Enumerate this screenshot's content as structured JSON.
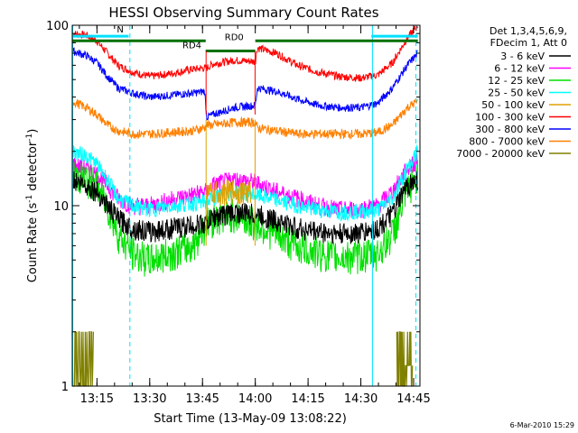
{
  "chart_data": {
    "type": "line",
    "title": "HESSI Observing Summary Count Rates",
    "xlabel": "Start Time (13-May-09 13:08:22)",
    "ylabel": "Count Rate (s⁻¹ detector⁻¹)",
    "ylabel_parts": {
      "pre": "Count Rate (s",
      "sup": "-1",
      "mid": " detector",
      "post": ")"
    },
    "x_range_minutes": [
      13.133,
      14.78
    ],
    "x_ticks": [
      {
        "label": "13:15",
        "t": 13.25
      },
      {
        "label": "13:30",
        "t": 13.5
      },
      {
        "label": "13:45",
        "t": 13.75
      },
      {
        "label": "14:00",
        "t": 14.0
      },
      {
        "label": "14:15",
        "t": 14.25
      },
      {
        "label": "14:30",
        "t": 14.5
      },
      {
        "label": "14:45",
        "t": 14.75
      }
    ],
    "y_scale": "log",
    "ylim": [
      1,
      100
    ],
    "y_ticks": [
      "1",
      "10",
      "100"
    ],
    "legend_header": [
      "Det 1,3,4,5,6,9,",
      "FDecim 1, Att 0"
    ],
    "series": [
      {
        "name": "3 - 6 keV",
        "color": "#000000",
        "t": [
          13.133,
          13.2,
          13.25,
          13.3,
          13.35,
          13.42,
          13.5,
          13.6,
          13.7,
          13.77,
          13.8,
          13.9,
          14.0,
          14.1,
          14.2,
          14.3,
          14.4,
          14.5,
          14.58,
          14.65,
          14.72,
          14.77
        ],
        "y": [
          14,
          13,
          12,
          10,
          8.5,
          7.5,
          7.2,
          7.5,
          7.8,
          8,
          8.7,
          9.2,
          9,
          8.3,
          7.5,
          7.2,
          7,
          7.1,
          7.5,
          9,
          13,
          14
        ]
      },
      {
        "name": "6 - 12 keV",
        "color": "#ff00ff",
        "t": [
          13.133,
          13.2,
          13.25,
          13.3,
          13.35,
          13.42,
          13.5,
          13.6,
          13.7,
          13.77,
          13.8,
          13.9,
          14.0,
          14.1,
          14.2,
          14.3,
          14.4,
          14.5,
          14.58,
          14.65,
          14.72,
          14.77
        ],
        "y": [
          17,
          16,
          15,
          13,
          11,
          10,
          10,
          10.8,
          11.5,
          12,
          13,
          14,
          13.5,
          12,
          11,
          10,
          9.5,
          9.6,
          10,
          12,
          16,
          18
        ]
      },
      {
        "name": "12 - 25 keV",
        "color": "#00e000",
        "t": [
          13.133,
          13.2,
          13.25,
          13.3,
          13.35,
          13.42,
          13.5,
          13.6,
          13.7,
          13.77,
          13.8,
          13.9,
          14.0,
          14.1,
          14.2,
          14.3,
          14.4,
          14.5,
          14.58,
          14.65,
          14.72,
          14.77
        ],
        "y": [
          15,
          14,
          13,
          10,
          7,
          5.5,
          5,
          5.5,
          6,
          8,
          8.5,
          9,
          8,
          7,
          6,
          5.5,
          5.2,
          5.3,
          5.5,
          7,
          12,
          15
        ]
      },
      {
        "name": "25 - 50 keV",
        "color": "#00ffff",
        "t": [
          13.133,
          13.2,
          13.25,
          13.3,
          13.35,
          13.42,
          13.5,
          13.6,
          13.7,
          13.77,
          13.8,
          13.9,
          14.0,
          14.1,
          14.2,
          14.3,
          14.4,
          14.5,
          14.58,
          14.65,
          14.72,
          14.77
        ],
        "y": [
          20,
          19,
          17,
          14,
          11,
          10,
          9.5,
          10,
          10.3,
          10.5,
          11,
          12,
          11.5,
          10.8,
          10,
          9.5,
          9.2,
          9.3,
          9.5,
          11,
          16,
          20
        ]
      },
      {
        "name": "50 - 100 keV",
        "color": "#e0a000",
        "t": [
          13.77,
          13.82,
          13.9,
          13.98
        ],
        "y": [
          11.5,
          11.8,
          12,
          11.8
        ]
      },
      {
        "name": "100 - 300 keV",
        "color": "#ff0000",
        "t": [
          13.133,
          13.2,
          13.25,
          13.3,
          13.35,
          13.42,
          13.5,
          13.6,
          13.7,
          13.76,
          13.77,
          13.8,
          13.9,
          14.0,
          14.01,
          14.1,
          14.2,
          14.3,
          14.4,
          14.5,
          14.58,
          14.65,
          14.72,
          14.77
        ],
        "y": [
          90,
          88,
          82,
          70,
          60,
          55,
          52,
          54,
          57,
          58,
          58,
          61,
          64,
          63,
          75,
          70,
          60,
          55,
          52,
          51,
          53,
          62,
          85,
          100
        ]
      },
      {
        "name": "300 - 800 keV",
        "color": "#0000ff",
        "t": [
          13.133,
          13.2,
          13.25,
          13.3,
          13.35,
          13.42,
          13.5,
          13.6,
          13.7,
          13.76,
          13.77,
          13.8,
          13.9,
          14.0,
          14.01,
          14.1,
          14.2,
          14.3,
          14.4,
          14.5,
          14.58,
          14.65,
          14.72,
          14.77
        ],
        "y": [
          72,
          68,
          62,
          52,
          45,
          42,
          40,
          41,
          42,
          43,
          31,
          32,
          35,
          36,
          45,
          43,
          39,
          36,
          35,
          35,
          37,
          45,
          60,
          70
        ]
      },
      {
        "name": "800 - 7000 keV",
        "color": "#ff8000",
        "t": [
          13.133,
          13.2,
          13.25,
          13.3,
          13.35,
          13.42,
          13.5,
          13.6,
          13.7,
          13.76,
          13.77,
          13.8,
          13.9,
          14.0,
          14.01,
          14.1,
          14.2,
          14.3,
          14.4,
          14.5,
          14.58,
          14.65,
          14.72,
          14.77
        ],
        "y": [
          38,
          35,
          32,
          28,
          26,
          25,
          25,
          25.5,
          26,
          27,
          28,
          28,
          29,
          29,
          27,
          26,
          25,
          25,
          25,
          25,
          25.5,
          28,
          35,
          38
        ]
      },
      {
        "name": "7000 - 20000 keV",
        "color": "#808000",
        "segments": [
          {
            "t": [
              13.133,
              13.145,
              13.16,
              13.175,
              13.19,
              13.205,
              13.22,
              13.235
            ],
            "y": [
              2.0,
              2.0,
              2.0,
              2.0,
              2.0,
              2.0,
              2.0,
              2.0
            ]
          },
          {
            "t": [
              14.67,
              14.685,
              14.7,
              14.715,
              14.73,
              14.745
            ],
            "y": [
              2.0,
              2.0,
              2.0,
              2.0,
              2.0,
              2.0
            ]
          }
        ]
      }
    ],
    "annotations": {
      "flags_green": [
        {
          "t": [
            13.133,
            13.765
          ],
          "y": 82
        },
        {
          "t": [
            13.765,
            14.0
          ],
          "y": 72
        },
        {
          "t": [
            14.0,
            14.77
          ],
          "y": 82
        }
      ],
      "flags_cyan": [
        {
          "t": [
            13.133,
            13.4
          ],
          "y": 87
        },
        {
          "t": [
            14.55,
            14.77
          ],
          "y": 87
        }
      ],
      "labels": [
        {
          "text": "RD4",
          "t": 13.7,
          "y": 72
        },
        {
          "text": "RD0",
          "t": 13.9,
          "y": 80
        },
        {
          "text": "N",
          "t": 13.36,
          "y": 88
        }
      ],
      "vlines_cyan_solid": [
        13.135,
        14.555
      ],
      "vlines_cyan_dashed": [
        13.406,
        14.761
      ]
    }
  },
  "footer": {
    "date": "6-Mar-2010 15:29"
  }
}
